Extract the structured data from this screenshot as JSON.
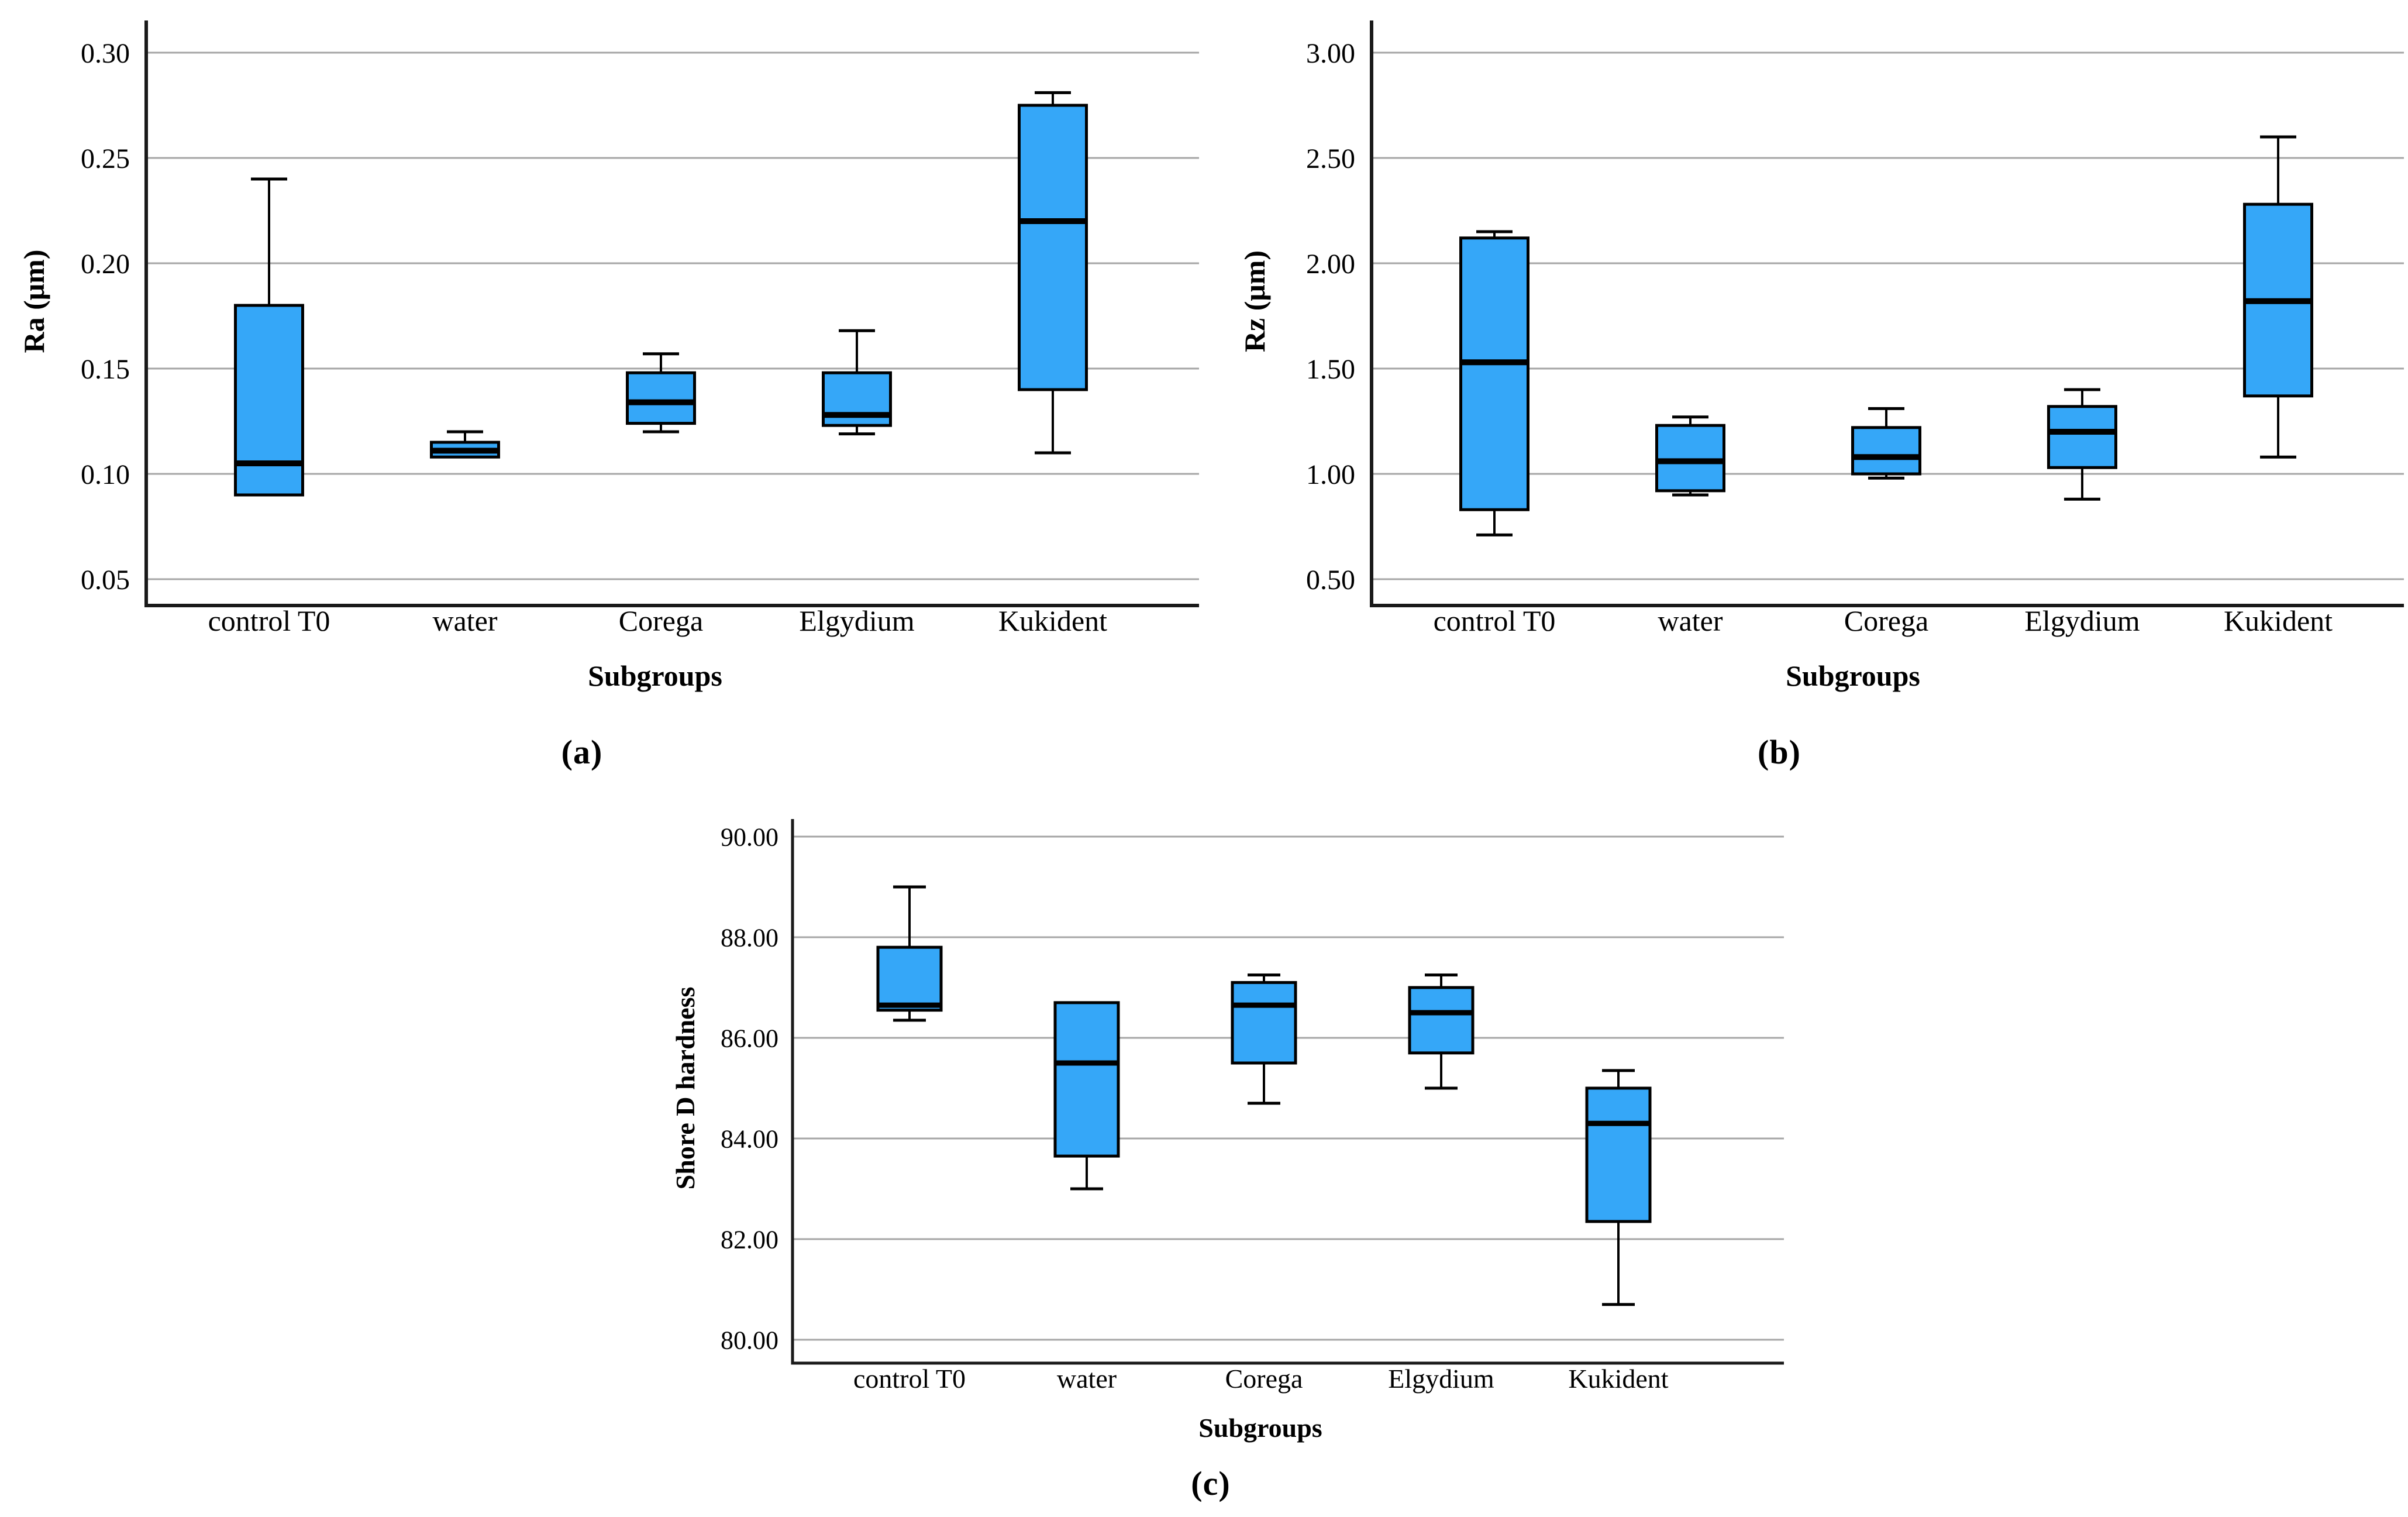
{
  "figure": {
    "captions": [
      {
        "open": "(",
        "letter": "a",
        "close": ")"
      },
      {
        "open": "(",
        "letter": "b",
        "close": ")"
      },
      {
        "open": "(",
        "letter": "c",
        "close": ")"
      }
    ]
  },
  "colors": {
    "box_fill": "#35a7f8",
    "box_border": "#000000",
    "median": "#000000",
    "whisker": "#000000",
    "gridline": "#a6a6a6",
    "axis": "#1a1a1a",
    "background": "#ffffff",
    "text": "#000000"
  },
  "chart_data": [
    {
      "id": "a",
      "type": "boxplot",
      "title": "",
      "xlabel": "Subgroups",
      "ylabel": "Ra (μm)",
      "caption": "(a)",
      "grid": "horizontal",
      "legend": "none",
      "ylim": [
        0.038,
        0.315
      ],
      "yticks": {
        "labels": [
          "0.30",
          "0.25",
          "0.20",
          "0.15",
          "0.10",
          "0.05"
        ],
        "values": [
          0.3,
          0.25,
          0.2,
          0.15,
          0.1,
          0.05
        ]
      },
      "categories": [
        "control T0",
        "water",
        "Corega",
        "Elgydium",
        "Kukident"
      ],
      "boxes": [
        {
          "category": "control T0",
          "min": 0.09,
          "q1": 0.09,
          "median": 0.105,
          "q3": 0.18,
          "max": 0.24
        },
        {
          "category": "water",
          "min": 0.108,
          "q1": 0.108,
          "median": 0.111,
          "q3": 0.115,
          "max": 0.12
        },
        {
          "category": "Corega",
          "min": 0.12,
          "q1": 0.124,
          "median": 0.134,
          "q3": 0.148,
          "max": 0.157
        },
        {
          "category": "Elgydium",
          "min": 0.119,
          "q1": 0.123,
          "median": 0.128,
          "q3": 0.148,
          "max": 0.168
        },
        {
          "category": "Kukident",
          "min": 0.11,
          "q1": 0.14,
          "median": 0.22,
          "q3": 0.275,
          "max": 0.281
        }
      ]
    },
    {
      "id": "b",
      "type": "boxplot",
      "title": "",
      "xlabel": "Subgroups",
      "ylabel": "Rz (μm)",
      "caption": "(b)",
      "grid": "horizontal",
      "legend": "none",
      "ylim": [
        0.38,
        3.15
      ],
      "yticks": {
        "labels": [
          "3.00",
          "2.50",
          "2.00",
          "1.50",
          "1.00",
          "0.50"
        ],
        "values": [
          3.0,
          2.5,
          2.0,
          1.5,
          1.0,
          0.5
        ]
      },
      "categories": [
        "control T0",
        "water",
        "Corega",
        "Elgydium",
        "Kukident"
      ],
      "boxes": [
        {
          "category": "control T0",
          "min": 0.71,
          "q1": 0.83,
          "median": 1.53,
          "q3": 2.12,
          "max": 2.15
        },
        {
          "category": "water",
          "min": 0.9,
          "q1": 0.92,
          "median": 1.06,
          "q3": 1.23,
          "max": 1.27
        },
        {
          "category": "Corega",
          "min": 0.98,
          "q1": 1.0,
          "median": 1.08,
          "q3": 1.22,
          "max": 1.31
        },
        {
          "category": "Elgydium",
          "min": 0.88,
          "q1": 1.03,
          "median": 1.2,
          "q3": 1.32,
          "max": 1.4
        },
        {
          "category": "Kukident",
          "min": 1.08,
          "q1": 1.37,
          "median": 1.82,
          "q3": 2.28,
          "max": 2.6
        }
      ]
    },
    {
      "id": "c",
      "type": "boxplot",
      "title": "",
      "xlabel": "Subgroups",
      "ylabel": "Shore D hardness",
      "caption": "(c)",
      "grid": "horizontal",
      "legend": "none",
      "ylim": [
        79.5,
        90.35
      ],
      "yticks": {
        "labels": [
          "90.00",
          "88.00",
          "86.00",
          "84.00",
          "82.00",
          "80.00"
        ],
        "values": [
          90.0,
          88.0,
          86.0,
          84.0,
          82.0,
          80.0
        ]
      },
      "categories": [
        "control T0",
        "water",
        "Corega",
        "Elgydium",
        "Kukident"
      ],
      "boxes": [
        {
          "category": "control T0",
          "min": 86.35,
          "q1": 86.55,
          "median": 86.65,
          "q3": 87.8,
          "max": 89.0
        },
        {
          "category": "water",
          "min": 83.0,
          "q1": 83.65,
          "median": 85.5,
          "q3": 86.7,
          "max": 86.7
        },
        {
          "category": "Corega",
          "min": 84.7,
          "q1": 85.5,
          "median": 86.65,
          "q3": 87.1,
          "max": 87.25
        },
        {
          "category": "Elgydium",
          "min": 85.0,
          "q1": 85.7,
          "median": 86.5,
          "q3": 87.0,
          "max": 87.25
        },
        {
          "category": "Kukident",
          "min": 80.7,
          "q1": 82.35,
          "median": 84.3,
          "q3": 85.0,
          "max": 85.35
        }
      ]
    }
  ]
}
